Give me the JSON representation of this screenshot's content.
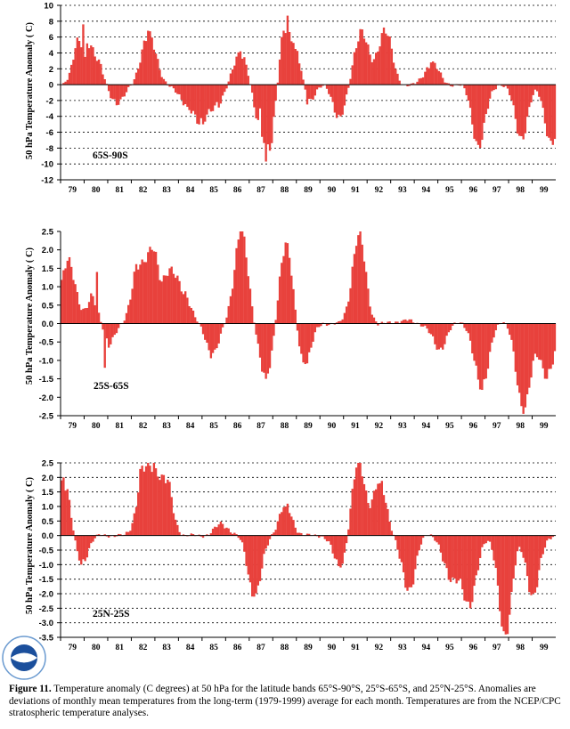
{
  "figure": {
    "label": "Figure 11.",
    "caption": "Temperature anomaly (C degrees) at 50 hPa for the latitude bands 65°S-90°S, 25°S-65°S, and 25°N-25°S. Anomalies are deviations of monthly mean temperatures from the long-term (1979-1999) average for each month. Temperatures are from the NCEP/CPC stratospheric temperature analyses.",
    "logo_text": "NOAA"
  },
  "colors": {
    "bar": "#e8413c",
    "axis": "#000000",
    "grid": "#000000",
    "background": "#ffffff"
  },
  "chart_data": [
    {
      "type": "bar",
      "band_label": "65S-90S",
      "ylabel": "50 hPa Temperature Anomaly ( C)",
      "ylim": [
        -12,
        10
      ],
      "yticks": [
        10,
        8,
        6,
        4,
        2,
        0,
        -2,
        -4,
        -6,
        -8,
        -10,
        -12
      ],
      "ytick_labels": [
        "10",
        "8",
        "6",
        "4",
        "2",
        "0",
        "-2",
        "-4",
        "-6",
        "-8",
        "-10",
        "-12"
      ],
      "grid": "dashed horizontal",
      "x_tick_labels": [
        "79",
        "80",
        "81",
        "82",
        "83",
        "84",
        "85",
        "86",
        "87",
        "88",
        "89",
        "90",
        "91",
        "92",
        "93",
        "94",
        "95",
        "96",
        "97",
        "98",
        "99"
      ],
      "x_start_year": 79,
      "x_months": 252,
      "series": [
        {
          "notable_values": [
            {
              "x": 79.9,
              "y": 7.6
            },
            {
              "x": 80.0,
              "y": 3.5
            },
            {
              "x": 80.5,
              "y": 3.0
            },
            {
              "x": 81.3,
              "y": -2.6
            },
            {
              "x": 82.7,
              "y": 6.8
            },
            {
              "x": 84.3,
              "y": -2.8
            },
            {
              "x": 85.0,
              "y": -5.0
            },
            {
              "x": 85.6,
              "y": -2.2
            },
            {
              "x": 86.6,
              "y": 4.2
            },
            {
              "x": 87.7,
              "y": -9.7
            },
            {
              "x": 87.4,
              "y": -3.0
            },
            {
              "x": 88.6,
              "y": 8.7
            },
            {
              "x": 88.9,
              "y": 4.5
            },
            {
              "x": 89.4,
              "y": -2.5
            },
            {
              "x": 90.8,
              "y": -4.0
            },
            {
              "x": 91.7,
              "y": 7.0
            },
            {
              "x": 92.7,
              "y": 7.2
            },
            {
              "x": 94.7,
              "y": 2.8
            },
            {
              "x": 96.7,
              "y": -7.6
            },
            {
              "x": 98.5,
              "y": -6.5
            },
            {
              "x": 99.8,
              "y": -7.6
            }
          ]
        }
      ]
    },
    {
      "type": "bar",
      "band_label": "25S-65S",
      "ylabel": "50 hPa Temperature Anomaly ( C)",
      "ylim": [
        -2.5,
        2.5
      ],
      "yticks": [
        2.5,
        2.0,
        1.5,
        1.0,
        0.5,
        0.0,
        -0.5,
        -1.0,
        -1.5,
        -2.0,
        -2.5
      ],
      "ytick_labels": [
        "2.5",
        "2.0",
        "1.5",
        "1.0",
        "0.5",
        "0.0",
        "-0.5",
        "-1.0",
        "-1.5",
        "-2.0",
        "-2.5"
      ],
      "grid": "none",
      "x_tick_labels": [
        "79",
        "80",
        "81",
        "82",
        "83",
        "84",
        "85",
        "86",
        "87",
        "88",
        "89",
        "90",
        "91",
        "92",
        "93",
        "94",
        "95",
        "96",
        "97",
        "98",
        "99"
      ],
      "x_start_year": 79,
      "x_months": 252,
      "series": [
        {
          "notable_values": [
            {
              "x": 79.3,
              "y": 1.8
            },
            {
              "x": 80.5,
              "y": 1.4
            },
            {
              "x": 80.8,
              "y": -1.2
            },
            {
              "x": 82.3,
              "y": 1.6
            },
            {
              "x": 82.8,
              "y": 2.0
            },
            {
              "x": 83.6,
              "y": 1.5
            },
            {
              "x": 84.2,
              "y": 0.8
            },
            {
              "x": 85.4,
              "y": -0.8
            },
            {
              "x": 86.6,
              "y": 2.5
            },
            {
              "x": 87.7,
              "y": -1.5
            },
            {
              "x": 88.5,
              "y": 2.2
            },
            {
              "x": 89.3,
              "y": -1.1
            },
            {
              "x": 91.6,
              "y": 2.4
            },
            {
              "x": 93.5,
              "y": 0.1
            },
            {
              "x": 95.0,
              "y": -0.7
            },
            {
              "x": 96.8,
              "y": -1.8
            },
            {
              "x": 98.6,
              "y": -2.45
            },
            {
              "x": 99.6,
              "y": -1.5
            }
          ]
        }
      ]
    },
    {
      "type": "bar",
      "band_label": "25N-25S",
      "ylabel": "50 hPa Temperature Anomaly ( C)",
      "ylim": [
        -3.5,
        2.5
      ],
      "yticks": [
        2.5,
        2.0,
        1.5,
        1.0,
        0.5,
        0.0,
        -0.5,
        -1.0,
        -1.5,
        -2.0,
        -2.5,
        -3.0,
        -3.5
      ],
      "ytick_labels": [
        "2.5",
        "2.0",
        "1.5",
        "1.0",
        "0.5",
        "0.0",
        "-0.5",
        "-1.0",
        "-1.5",
        "-2.0",
        "-2.5",
        "-3.0",
        "-3.5"
      ],
      "grid": "dashed horizontal",
      "x_tick_labels": [
        "79",
        "80",
        "81",
        "82",
        "83",
        "84",
        "85",
        "86",
        "87",
        "88",
        "89",
        "90",
        "91",
        "92",
        "93",
        "94",
        "95",
        "96",
        "97",
        "98",
        "99"
      ],
      "x_start_year": 79,
      "x_months": 252,
      "series": [
        {
          "notable_values": [
            {
              "x": 79.1,
              "y": 2.0
            },
            {
              "x": 79.8,
              "y": -1.0
            },
            {
              "x": 82.5,
              "y": 2.2
            },
            {
              "x": 82.9,
              "y": 2.5
            },
            {
              "x": 83.4,
              "y": 1.8
            },
            {
              "x": 85.8,
              "y": 0.4
            },
            {
              "x": 87.2,
              "y": -2.1
            },
            {
              "x": 88.5,
              "y": 1.0
            },
            {
              "x": 90.8,
              "y": -1.1
            },
            {
              "x": 91.6,
              "y": 2.5
            },
            {
              "x": 92.5,
              "y": 1.8
            },
            {
              "x": 93.7,
              "y": -1.9
            },
            {
              "x": 95.5,
              "y": -1.6
            },
            {
              "x": 96.3,
              "y": -2.5
            },
            {
              "x": 97.8,
              "y": -3.4
            },
            {
              "x": 99.0,
              "y": -2.0
            }
          ]
        }
      ]
    }
  ]
}
